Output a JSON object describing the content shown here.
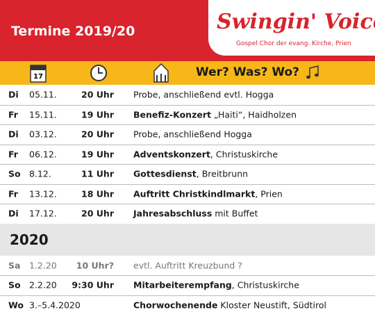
{
  "header": {
    "title": "Termine 2019/20",
    "logo": "Swingin' Voices",
    "logo_subtitle": "Gospel Chor der evang. Kirche, Prien"
  },
  "column_header": {
    "calendar_day": "17",
    "label": "Wer? Was? Wo?"
  },
  "sections": [
    {
      "rows": [
        {
          "day": "Di",
          "date": "05.11.",
          "time": "20 Uhr",
          "rest": "Probe, anschließend evtl. Hogga"
        },
        {
          "day": "Fr",
          "date": "15.11.",
          "time": "19 Uhr",
          "bold": "Benefiz-Konzert",
          "rest": " „Haiti“, Haidholzen"
        },
        {
          "day": "Di",
          "date": "03.12.",
          "time": "20 Uhr",
          "rest": "Probe, anschließend Hogga"
        },
        {
          "day": "Fr",
          "date": "06.12.",
          "time": "19 Uhr",
          "bold": "Adventskonzert",
          "rest": ", Christuskirche"
        },
        {
          "day": "So",
          "date": "8.12.",
          "time": "11 Uhr",
          "bold": "Gottesdienst",
          "rest": ", Breitbrunn"
        },
        {
          "day": "Fr",
          "date": "13.12.",
          "time": "18 Uhr",
          "bold": "Auftritt Christkindlmarkt",
          "rest": ", Prien"
        },
        {
          "day": "Di",
          "date": "17.12.",
          "time": "20 Uhr",
          "bold": "Jahresabschluss",
          "rest": " mit Buffet"
        }
      ]
    },
    {
      "year": "2020",
      "rows": [
        {
          "day": "Sa",
          "date": "1.2.20",
          "time": "10 Uhr?",
          "rest": "evtl. Auftritt Kreuzbund ?",
          "tentative": true
        },
        {
          "day": "So",
          "date": "2.2.20",
          "time": "9:30 Uhr",
          "bold": "Mitarbeiterempfang",
          "rest": ", Christuskirche"
        },
        {
          "day": "Wo",
          "date": "3.–5.4.2020",
          "time": "",
          "bold": "Chorwochenende",
          "rest": " Kloster Neustift, Südtirol"
        }
      ]
    }
  ]
}
